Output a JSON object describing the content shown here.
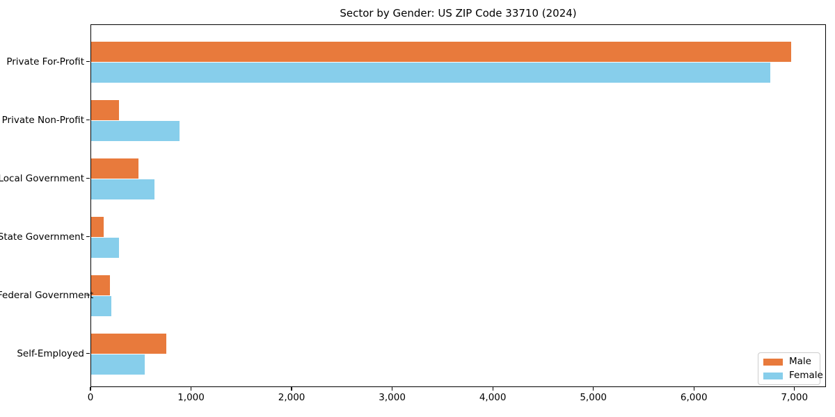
{
  "chart_data": {
    "type": "bar",
    "orientation": "horizontal",
    "title": "Sector by Gender: US ZIP Code 33710 (2024)",
    "categories": [
      "Private For-Profit",
      "Private Non-Profit",
      "Local Government",
      "State Government",
      "Federal Government",
      "Self-Employed"
    ],
    "series": [
      {
        "name": "Male",
        "color": "#E87A3C",
        "values": [
          6960,
          278,
          470,
          122,
          185,
          750
        ]
      },
      {
        "name": "Female",
        "color": "#87CEEB",
        "values": [
          6750,
          877,
          630,
          279,
          203,
          535
        ]
      }
    ],
    "xlabel": "",
    "ylabel": "",
    "xlim": [
      0,
      7313
    ],
    "xticks": {
      "values": [
        0,
        1000,
        2000,
        3000,
        4000,
        5000,
        6000,
        7000
      ],
      "labels": [
        "0",
        "1,000",
        "2,000",
        "3,000",
        "4,000",
        "5,000",
        "6,000",
        "7,000"
      ]
    },
    "grid": false,
    "legend": {
      "position": "lower-right",
      "entries": [
        {
          "label": "Male",
          "color": "#E87A3C"
        },
        {
          "label": "Female",
          "color": "#87CEEB"
        }
      ]
    }
  }
}
